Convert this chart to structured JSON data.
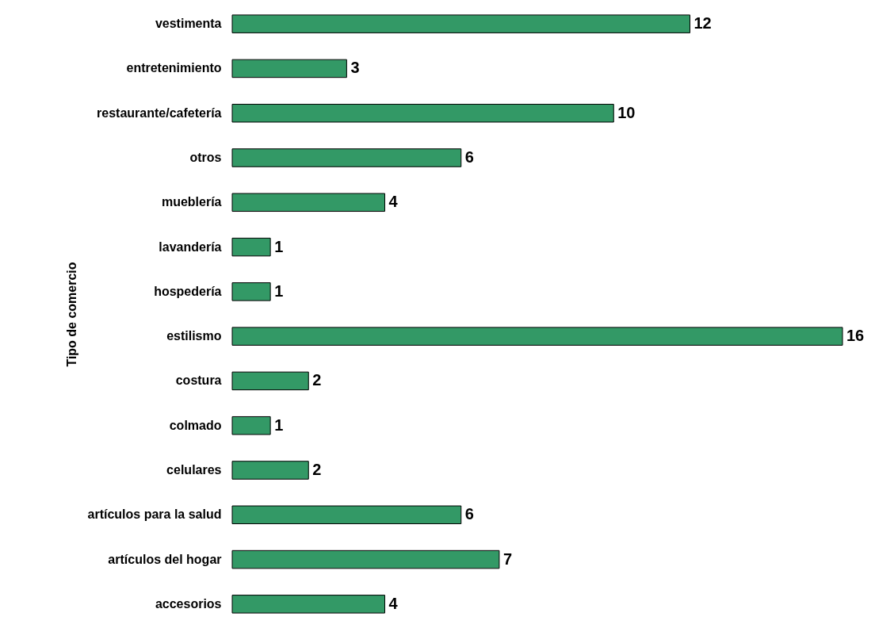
{
  "chart_data": {
    "type": "bar",
    "orientation": "horizontal",
    "ylabel": "Tipo de comercio",
    "categories": [
      "vestimenta",
      "entretenimiento",
      "restaurante/cafetería",
      "otros",
      "mueblería",
      "lavandería",
      "hospedería",
      "estilismo",
      "costura",
      "colmado",
      "celulares",
      "artículos para la salud",
      "artículos del hogar",
      "accesorios"
    ],
    "values": [
      12,
      3,
      10,
      6,
      4,
      1,
      1,
      16,
      2,
      1,
      2,
      6,
      7,
      4
    ],
    "color": "#339966",
    "data_labels": true
  }
}
